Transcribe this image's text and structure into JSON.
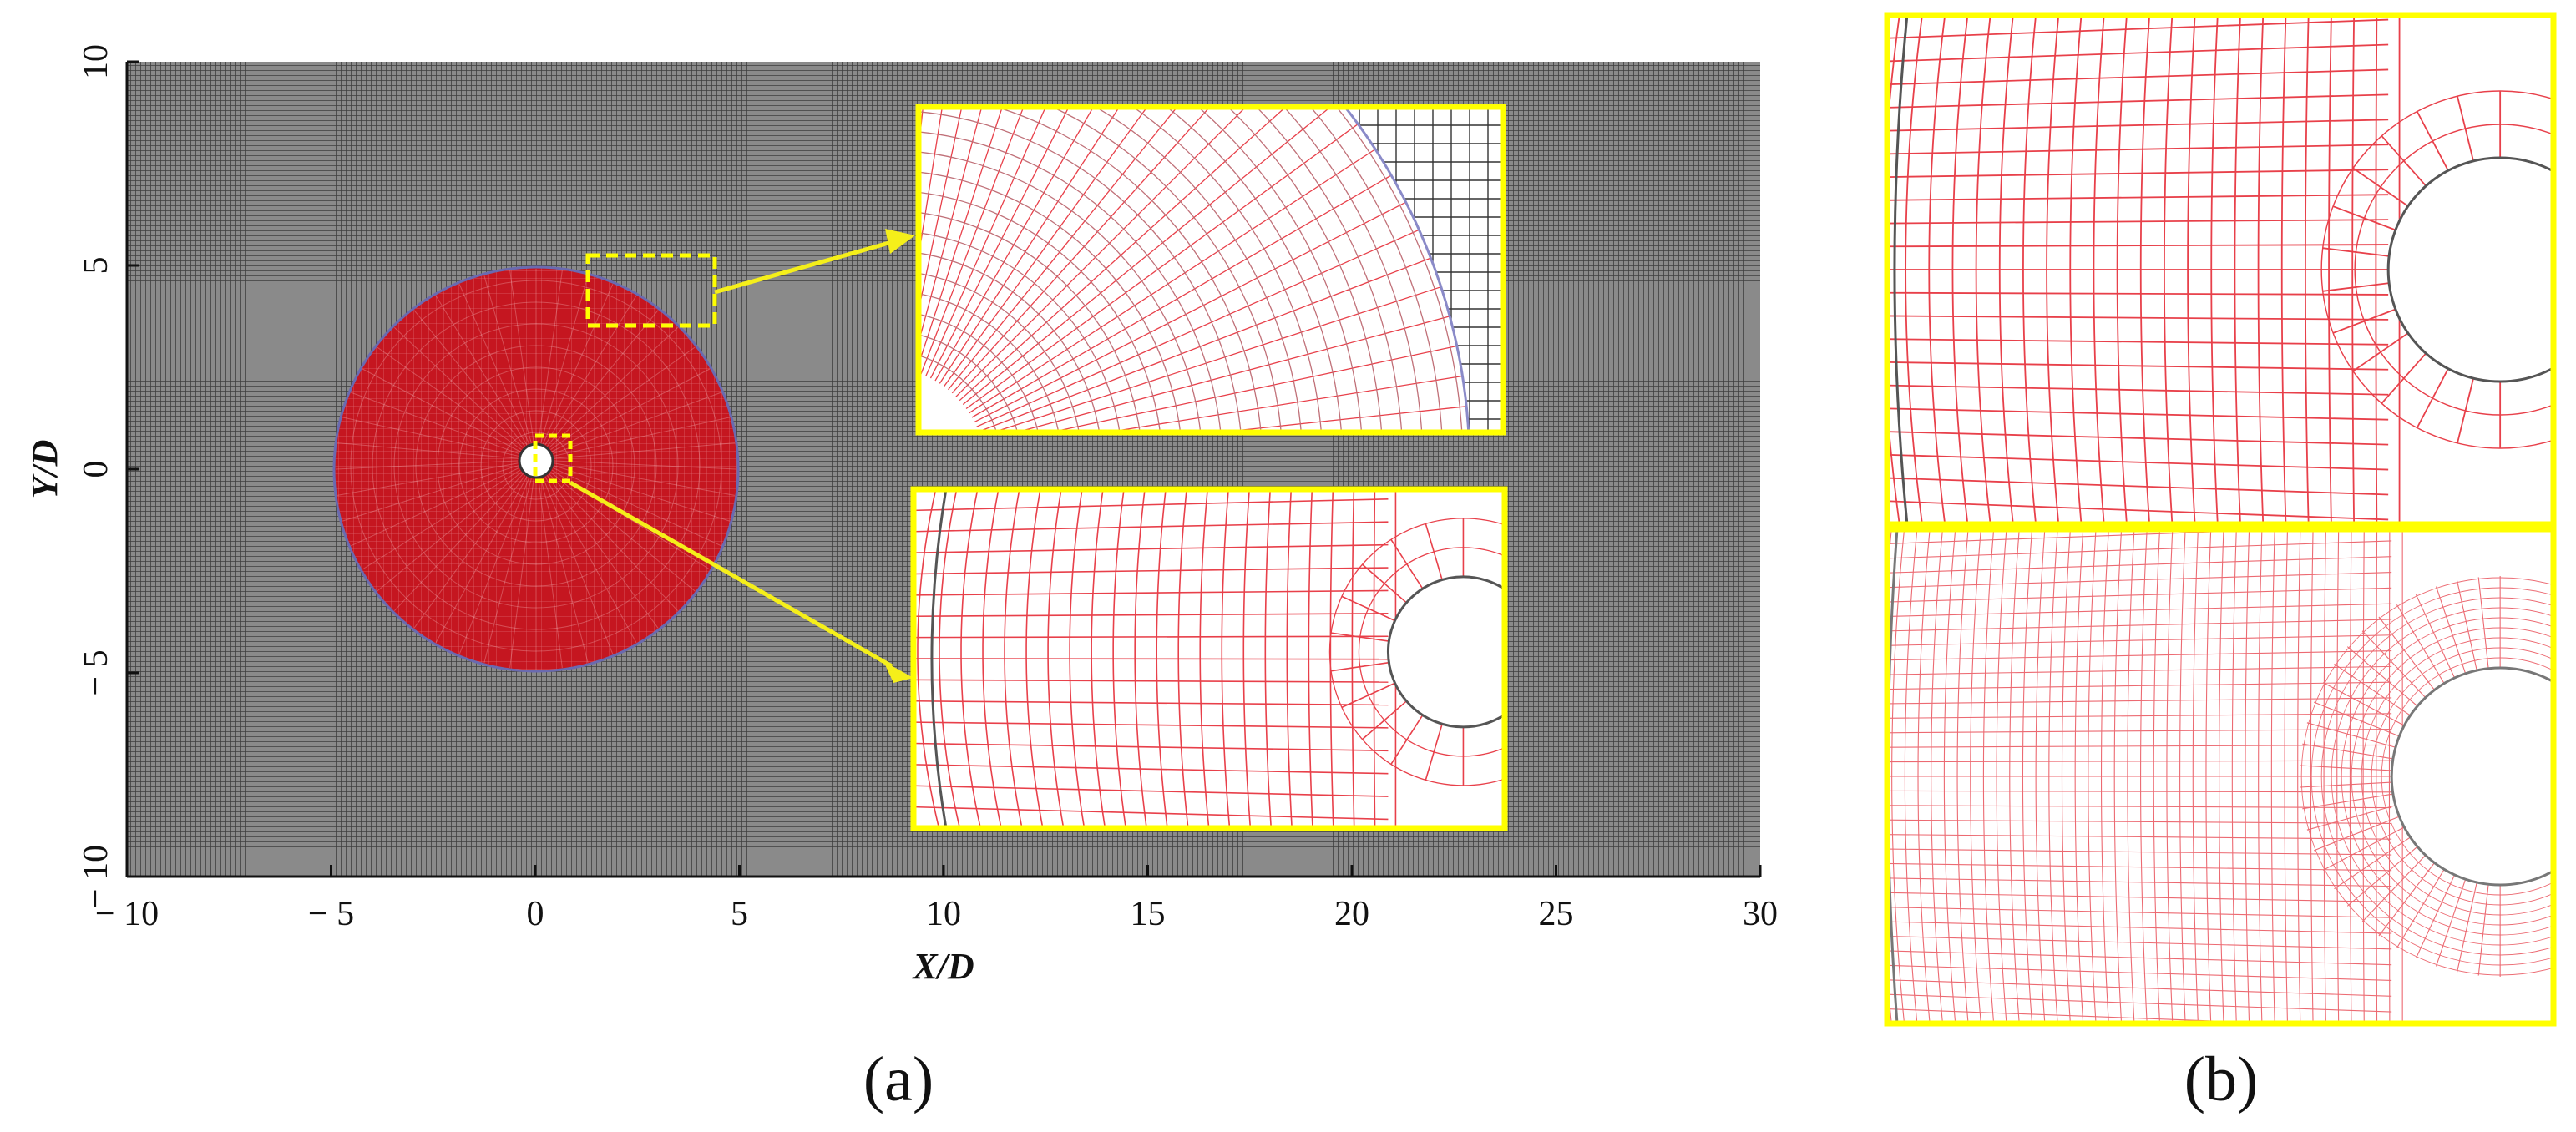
{
  "figure": {
    "panel_a_label": "(a)",
    "panel_b_label": "(b)",
    "x_axis_label": "X/D",
    "y_axis_label": "Y/D",
    "x_ticks": [
      "− 10",
      "− 5",
      "0",
      "5",
      "10",
      "15",
      "20",
      "25",
      "30"
    ],
    "y_ticks": [
      "10",
      "5",
      "0",
      "− 5",
      "− 10"
    ],
    "x_tick_values": [
      -10,
      -5,
      0,
      5,
      10,
      15,
      20,
      25,
      30
    ],
    "y_tick_values": [
      10,
      5,
      0,
      -5,
      -10
    ],
    "x_range": [
      -10,
      30
    ],
    "y_range": [
      -10,
      10
    ]
  },
  "colors": {
    "background_mesh": "#6b6b6b",
    "mesh_line": "#3a3a3a",
    "rotating_zone": "#c0141e",
    "highlight": "#ffff00",
    "arrow": "#f5ef1a",
    "fine_red": "#e8404a",
    "dark_line": "#555555"
  }
}
